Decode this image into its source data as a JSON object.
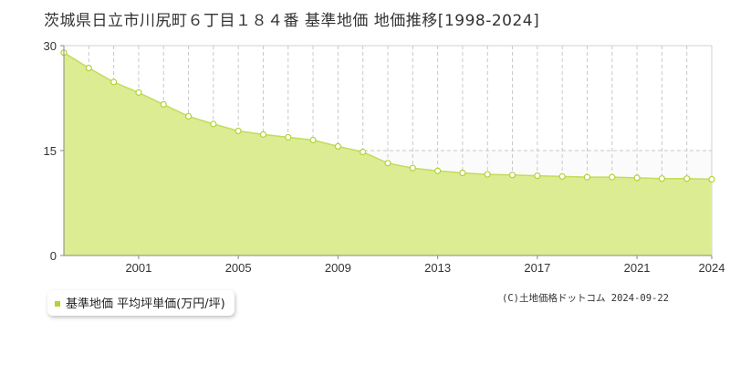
{
  "title": "茨城県日立市川尻町６丁目１８４番 基準地価 地価推移[1998-2024]",
  "legend": {
    "label": "基準地価 平均坪単価(万円/坪)"
  },
  "credit": "(C)土地価格ドットコム 2024-09-22",
  "colors": {
    "fill": "#dcec92",
    "line": "#c2dc5c",
    "marker": "#b2d235",
    "grid": "#c8c8c8"
  },
  "chart_data": {
    "type": "area",
    "x": [
      1998,
      1999,
      2000,
      2001,
      2002,
      2003,
      2004,
      2005,
      2006,
      2007,
      2008,
      2009,
      2010,
      2011,
      2012,
      2013,
      2014,
      2015,
      2016,
      2017,
      2018,
      2019,
      2020,
      2021,
      2022,
      2023,
      2024
    ],
    "series": [
      {
        "values": [
          29.0,
          26.8,
          24.8,
          23.3,
          21.6,
          19.9,
          18.8,
          17.8,
          17.3,
          16.9,
          16.5,
          15.6,
          14.8,
          13.2,
          12.5,
          12.1,
          11.8,
          11.6,
          11.5,
          11.4,
          11.3,
          11.2,
          11.2,
          11.1,
          11.0,
          11.0,
          10.9
        ]
      }
    ],
    "xlim": [
      1998,
      2024
    ],
    "ylim": [
      0,
      30
    ],
    "yticks": [
      "0",
      "15",
      "30"
    ],
    "xticks": [
      "2001",
      "2005",
      "2009",
      "2013",
      "2017",
      "2021",
      "2024"
    ],
    "grid": true,
    "legend_position": "bottom-left"
  }
}
